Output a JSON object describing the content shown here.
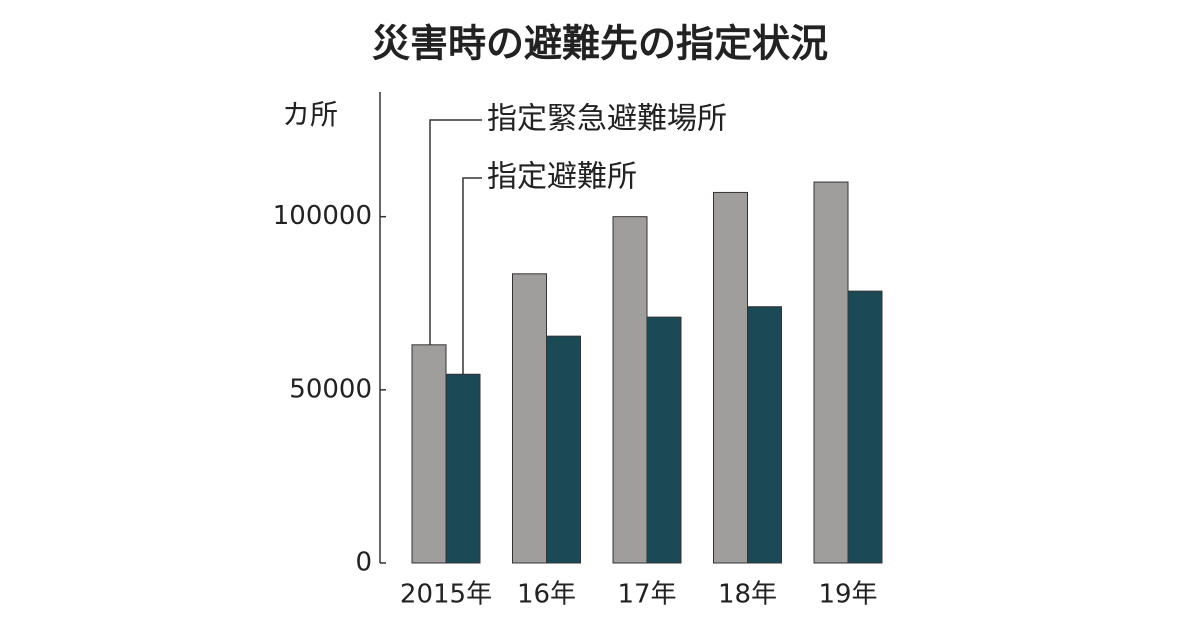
{
  "chart_data": {
    "type": "bar",
    "title": "災害時の避難先の指定状況",
    "y_label": "カ所",
    "categories": [
      "2015年",
      "16年",
      "17年",
      "18年",
      "19年"
    ],
    "series": [
      {
        "name": "指定緊急避難場所",
        "color": "#a09d9d",
        "values": [
          63000,
          83500,
          100000,
          107000,
          110000
        ]
      },
      {
        "name": "指定避難所",
        "color": "#1b4a56",
        "values": [
          54500,
          65500,
          71000,
          74000,
          78500
        ]
      }
    ],
    "ylim": [
      0,
      136000
    ],
    "yticks": [
      0,
      50000,
      100000
    ],
    "grid": false
  }
}
